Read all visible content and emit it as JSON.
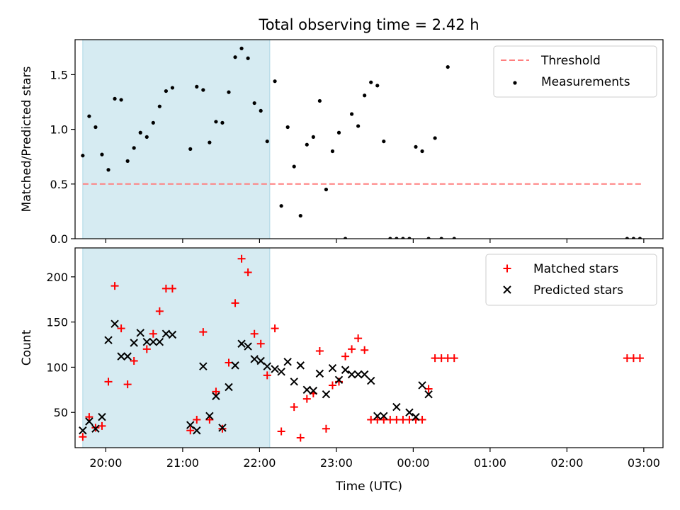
{
  "figure": {
    "title": "Total observing time = 2.42 h",
    "xlabel": "Time (UTC)",
    "x_ticks": [
      "20:00",
      "21:00",
      "22:00",
      "23:00",
      "00:00",
      "01:00",
      "02:00",
      "03:00"
    ],
    "shaded_span": [
      "19:42",
      "22:08"
    ],
    "shade_color": "#add8e6"
  },
  "chart_data": [
    {
      "type": "scatter",
      "ylabel": "Matched/Predicted stars",
      "ylim": [
        0,
        1.82
      ],
      "y_ticks": [
        0.0,
        0.5,
        1.0,
        1.5
      ],
      "y_tick_labels": [
        "0.0",
        "0.5",
        "1.0",
        "1.5"
      ],
      "legend": {
        "position": "top-right",
        "entries": [
          "Threshold",
          "Measurements"
        ]
      },
      "threshold": {
        "name": "Threshold",
        "value": 0.5,
        "x_range": [
          "19:42",
          "02:59"
        ],
        "color": "#ff7f7f"
      },
      "series": [
        {
          "name": "Measurements",
          "color": "#000000",
          "marker": "dot",
          "x": [
            "19:42",
            "19:47",
            "19:52",
            "19:57",
            "20:02",
            "20:07",
            "20:12",
            "20:17",
            "20:22",
            "20:27",
            "20:32",
            "20:37",
            "20:42",
            "20:47",
            "20:52",
            "21:06",
            "21:11",
            "21:16",
            "21:21",
            "21:26",
            "21:31",
            "21:36",
            "21:41",
            "21:46",
            "21:51",
            "21:56",
            "22:01",
            "22:06",
            "22:12",
            "22:17",
            "22:22",
            "22:27",
            "22:32",
            "22:37",
            "22:42",
            "22:47",
            "22:52",
            "22:57",
            "23:02",
            "23:07",
            "23:12",
            "23:17",
            "23:22",
            "23:27",
            "23:32",
            "23:37",
            "23:42",
            "23:47",
            "23:52",
            "23:57",
            "00:02",
            "00:07",
            "00:12",
            "00:17",
            "00:22",
            "00:27",
            "00:32",
            "02:47",
            "02:52",
            "02:57"
          ],
          "y": [
            0.76,
            1.12,
            1.02,
            0.77,
            0.63,
            1.28,
            1.27,
            0.71,
            0.83,
            0.97,
            0.93,
            1.06,
            1.21,
            1.35,
            1.38,
            0.82,
            1.39,
            1.36,
            0.88,
            1.07,
            1.06,
            1.34,
            1.66,
            1.74,
            1.65,
            1.24,
            1.17,
            0.89,
            1.44,
            0.3,
            1.02,
            0.66,
            0.21,
            0.86,
            0.93,
            1.26,
            0.45,
            0.8,
            0.97,
            0.0,
            1.14,
            1.03,
            1.31,
            1.43,
            1.4,
            0.89,
            0.0,
            0.0,
            0.0,
            0.0,
            0.84,
            0.8,
            0.0,
            0.92,
            0.0,
            1.57,
            0.0,
            0.0,
            0.0,
            0.0
          ]
        }
      ]
    },
    {
      "type": "scatter",
      "ylabel": "Count",
      "ylim": [
        11,
        232
      ],
      "y_ticks": [
        50,
        100,
        150,
        200
      ],
      "y_tick_labels": [
        "50",
        "100",
        "150",
        "200"
      ],
      "legend": {
        "position": "top-right",
        "entries": [
          "Matched stars",
          "Predicted stars"
        ]
      },
      "series": [
        {
          "name": "Matched stars",
          "color": "#ff0000",
          "marker": "plus",
          "x": [
            "19:42",
            "19:47",
            "19:52",
            "19:57",
            "20:02",
            "20:07",
            "20:12",
            "20:17",
            "20:22",
            "20:32",
            "20:37",
            "20:42",
            "20:47",
            "20:52",
            "21:06",
            "21:11",
            "21:16",
            "21:21",
            "21:26",
            "21:31",
            "21:36",
            "21:41",
            "21:46",
            "21:51",
            "21:56",
            "22:01",
            "22:06",
            "22:12",
            "22:17",
            "22:27",
            "22:32",
            "22:37",
            "22:42",
            "22:47",
            "22:52",
            "22:57",
            "23:02",
            "23:07",
            "23:12",
            "23:17",
            "23:22",
            "23:27",
            "23:32",
            "23:37",
            "23:42",
            "23:47",
            "23:52",
            "23:57",
            "00:02",
            "00:07",
            "00:12",
            "00:17",
            "00:22",
            "00:27",
            "00:32",
            "02:47",
            "02:52",
            "02:57"
          ],
          "y": [
            23,
            45,
            33,
            35,
            84,
            190,
            143,
            81,
            107,
            120,
            137,
            162,
            187,
            187,
            30,
            42,
            139,
            42,
            73,
            32,
            105,
            171,
            220,
            205,
            137,
            126,
            91,
            143,
            29,
            56,
            22,
            65,
            71,
            118,
            32,
            80,
            84,
            112,
            120,
            132,
            119,
            42,
            42,
            42,
            42,
            42,
            42,
            42,
            42,
            42,
            76,
            110,
            110,
            110,
            110,
            110,
            110,
            110
          ]
        },
        {
          "name": "Predicted stars",
          "color": "#000000",
          "marker": "x",
          "x": [
            "19:42",
            "19:47",
            "19:52",
            "19:57",
            "20:02",
            "20:07",
            "20:12",
            "20:17",
            "20:22",
            "20:27",
            "20:32",
            "20:37",
            "20:42",
            "20:47",
            "20:52",
            "21:06",
            "21:11",
            "21:16",
            "21:21",
            "21:26",
            "21:31",
            "21:36",
            "21:41",
            "21:46",
            "21:51",
            "21:56",
            "22:01",
            "22:06",
            "22:12",
            "22:17",
            "22:22",
            "22:27",
            "22:32",
            "22:37",
            "22:42",
            "22:47",
            "22:52",
            "22:57",
            "23:02",
            "23:07",
            "23:12",
            "23:17",
            "23:22",
            "23:27",
            "23:32",
            "23:37",
            "23:47",
            "23:57",
            "00:02",
            "00:07",
            "00:12"
          ],
          "y": [
            30,
            40,
            32,
            45,
            130,
            148,
            112,
            112,
            127,
            138,
            128,
            128,
            128,
            137,
            136,
            36,
            30,
            101,
            46,
            68,
            33,
            78,
            102,
            126,
            123,
            109,
            107,
            101,
            98,
            95,
            106,
            84,
            102,
            75,
            74,
            93,
            70,
            99,
            86,
            97,
            92,
            92,
            92,
            85,
            46,
            46,
            56,
            50,
            45,
            80,
            70
          ]
        }
      ]
    }
  ]
}
